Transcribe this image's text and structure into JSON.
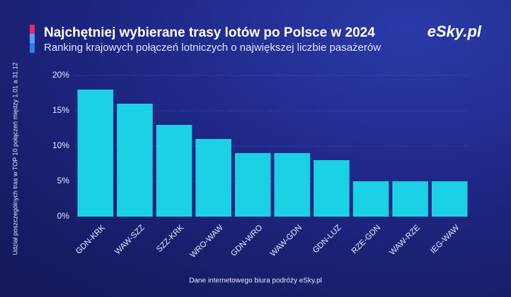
{
  "chart_data": {
    "type": "bar",
    "title": "Najchętniej wybierane trasy lotów po Polsce w 2024",
    "subtitle": "Ranking krajowych połączeń lotniczych o największej liczbie pasażerów",
    "logo": "eSky.pl",
    "y_label": "Udział poszczególnych tras w TOP 10 połączeń między 1.01 a 31.12",
    "source": "Dane internetowego biura podróży eSky.pl",
    "categories": [
      "GDN-KRK",
      "WAW-SZZ",
      "SZZ-KRK",
      "WRO-WAW",
      "GDN-WRO",
      "WAW-GDN",
      "GDN-LUZ",
      "RZE-GDN",
      "WAW-RZE",
      "IEG-WAW"
    ],
    "values": [
      18,
      16,
      13,
      11,
      9,
      9,
      8,
      5,
      5,
      5
    ],
    "color": "#1ad1e5",
    "ylim": [
      0,
      20
    ],
    "yticks": [
      {
        "value": 0,
        "label": "0%"
      },
      {
        "value": 5,
        "label": "5%"
      },
      {
        "value": 10,
        "label": "10%"
      },
      {
        "value": 15,
        "label": "15%"
      },
      {
        "value": 20,
        "label": "20%"
      }
    ],
    "grid": true
  }
}
